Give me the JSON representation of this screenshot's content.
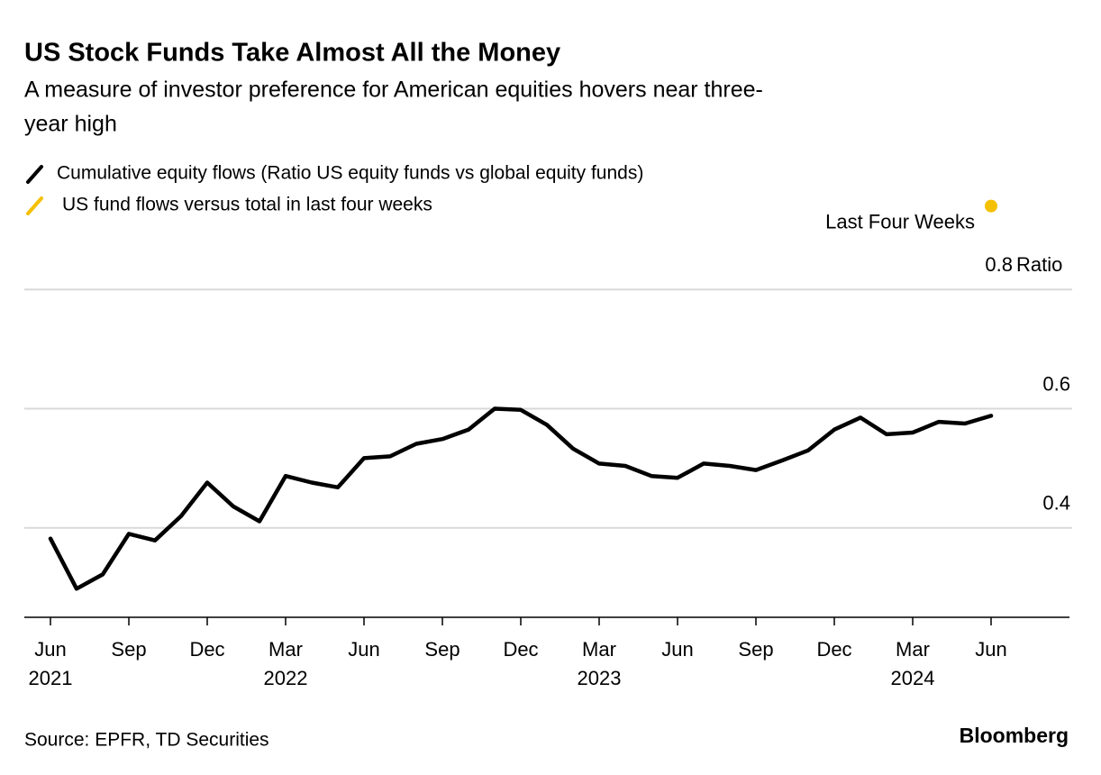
{
  "chart_data": {
    "type": "line",
    "title": "US Stock Funds Take Almost All the Money",
    "subtitle": [
      "A measure of investor preference for American equities hovers near three-",
      "year high"
    ],
    "y_axis_label": "Ratio",
    "annotation": "Last Four Weeks",
    "source": "Source: EPFR, TD Securities",
    "brand": "Bloomberg",
    "x": [
      "2021-06",
      "2021-07",
      "2021-08",
      "2021-09",
      "2021-10",
      "2021-11",
      "2021-12",
      "2022-01",
      "2022-02",
      "2022-03",
      "2022-04",
      "2022-05",
      "2022-06",
      "2022-07",
      "2022-08",
      "2022-09",
      "2022-10",
      "2022-11",
      "2022-12",
      "2023-01",
      "2023-02",
      "2023-03",
      "2023-04",
      "2023-05",
      "2023-06",
      "2023-07",
      "2023-08",
      "2023-09",
      "2023-10",
      "2023-11",
      "2023-12",
      "2024-01",
      "2024-02",
      "2024-03",
      "2024-04",
      "2024-05",
      "2024-06"
    ],
    "series": [
      {
        "name": "Cumulative equity flows (Ratio US equity funds vs global equity funds)",
        "color": "#000000",
        "values": [
          0.382,
          0.298,
          0.322,
          0.39,
          0.379,
          0.42,
          0.476,
          0.436,
          0.411,
          0.487,
          0.476,
          0.468,
          0.517,
          0.52,
          0.541,
          0.549,
          0.565,
          0.6,
          0.598,
          0.573,
          0.533,
          0.508,
          0.504,
          0.487,
          0.484,
          0.508,
          0.504,
          0.497,
          0.513,
          0.53,
          0.565,
          0.585,
          0.557,
          0.56,
          0.578,
          0.575,
          0.588
        ]
      },
      {
        "name": "US fund flows versus total in last four weeks",
        "color": "#f5c000",
        "marker": "dot",
        "x": [
          "2024-06"
        ],
        "values": [
          0.94
        ]
      }
    ],
    "xlim": [
      "2021-05",
      "2024-09"
    ],
    "xticks": [
      {
        "value": "2021-06",
        "label": "Jun"
      },
      {
        "value": "2021-09",
        "label": "Sep"
      },
      {
        "value": "2021-12",
        "label": "Dec"
      },
      {
        "value": "2022-03",
        "label": "Mar"
      },
      {
        "value": "2022-06",
        "label": "Jun"
      },
      {
        "value": "2022-09",
        "label": "Sep"
      },
      {
        "value": "2022-12",
        "label": "Dec"
      },
      {
        "value": "2023-03",
        "label": "Mar"
      },
      {
        "value": "2023-06",
        "label": "Jun"
      },
      {
        "value": "2023-09",
        "label": "Sep"
      },
      {
        "value": "2023-12",
        "label": "Dec"
      },
      {
        "value": "2024-03",
        "label": "Mar"
      },
      {
        "value": "2024-06",
        "label": "Jun"
      }
    ],
    "xtick_years": [
      {
        "value": "2021-06",
        "label": "2021"
      },
      {
        "value": "2022-03",
        "label": "2022"
      },
      {
        "value": "2023-03",
        "label": "2023"
      },
      {
        "value": "2024-03",
        "label": "2024"
      }
    ],
    "ylim": [
      0.25,
      0.95
    ],
    "yticks": [
      0.4,
      0.6,
      0.8
    ],
    "grid": true
  }
}
